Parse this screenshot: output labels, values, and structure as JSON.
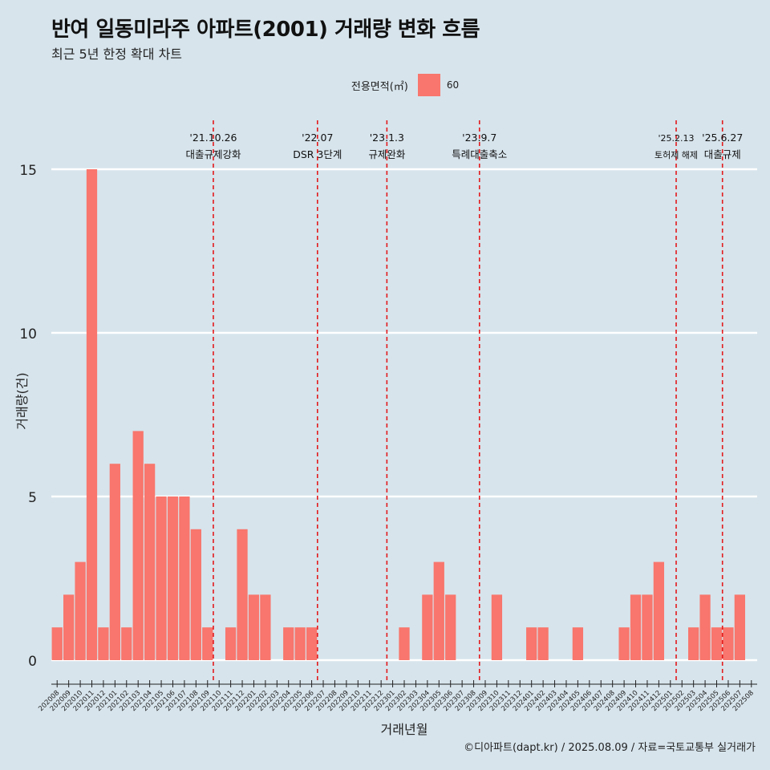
{
  "title": "반여 일동미라주 아파트(2001) 거래량 변화 흐름",
  "subtitle": "최근 5년 한정 확대 차트",
  "legend": {
    "title": "전용면적(㎡)",
    "items": [
      "60"
    ]
  },
  "caption": "©디아파트(dapt.kr) / 2025.08.09 / 자료=국토교통부 실거래가",
  "colors": {
    "bar": "#f8766d",
    "event_line": "#e31a1c",
    "background": "#d7e4ec",
    "grid": "#ffffff"
  },
  "chart_data": {
    "type": "bar",
    "xlabel": "거래년월",
    "ylabel": "거래량(건)",
    "ylim": [
      0,
      16
    ],
    "yticks": [
      0,
      5,
      10,
      15
    ],
    "grid": true,
    "legend_position": "top",
    "categories": [
      "202008",
      "202009",
      "202010",
      "202011",
      "202012",
      "202101",
      "202102",
      "202103",
      "202104",
      "202105",
      "202106",
      "202107",
      "202108",
      "202109",
      "202110",
      "202111",
      "202112",
      "202201",
      "202202",
      "202203",
      "202204",
      "202205",
      "202206",
      "202207",
      "202208",
      "202209",
      "202210",
      "202211",
      "202212",
      "202301",
      "202302",
      "202303",
      "202304",
      "202305",
      "202306",
      "202307",
      "202308",
      "202309",
      "202310",
      "202311",
      "202312",
      "202401",
      "202402",
      "202403",
      "202404",
      "202405",
      "202406",
      "202407",
      "202408",
      "202409",
      "202410",
      "202411",
      "202412",
      "202501",
      "202502",
      "202503",
      "202504",
      "202505",
      "202506",
      "202507",
      "202508"
    ],
    "series": [
      {
        "name": "60",
        "values": [
          1,
          2,
          3,
          15,
          1,
          6,
          1,
          7,
          6,
          5,
          5,
          5,
          4,
          1,
          0,
          1,
          4,
          2,
          2,
          0,
          1,
          1,
          1,
          0,
          0,
          0,
          0,
          0,
          0,
          0,
          1,
          0,
          2,
          3,
          2,
          0,
          0,
          0,
          2,
          0,
          0,
          1,
          1,
          0,
          0,
          1,
          0,
          0,
          0,
          1,
          2,
          2,
          3,
          0,
          0,
          1,
          2,
          1,
          1,
          2,
          0
        ]
      }
    ],
    "events": [
      {
        "date": "'21.10.26",
        "label": "대출규제강화",
        "x_position": 14.0
      },
      {
        "date": "'22.07",
        "label": "DSR 3단계",
        "x_position": 23.0
      },
      {
        "date": "'23.1.3",
        "label": "규제완화",
        "x_position": 29.0
      },
      {
        "date": "'23.9.7",
        "label": "특례대출축소",
        "x_position": 37.0
      },
      {
        "date": "'25.2.13",
        "label": "토허제 해제",
        "x_position": 54.0
      },
      {
        "date": "'25.6.27",
        "label": "대출규제",
        "x_position": 58.0
      }
    ]
  }
}
